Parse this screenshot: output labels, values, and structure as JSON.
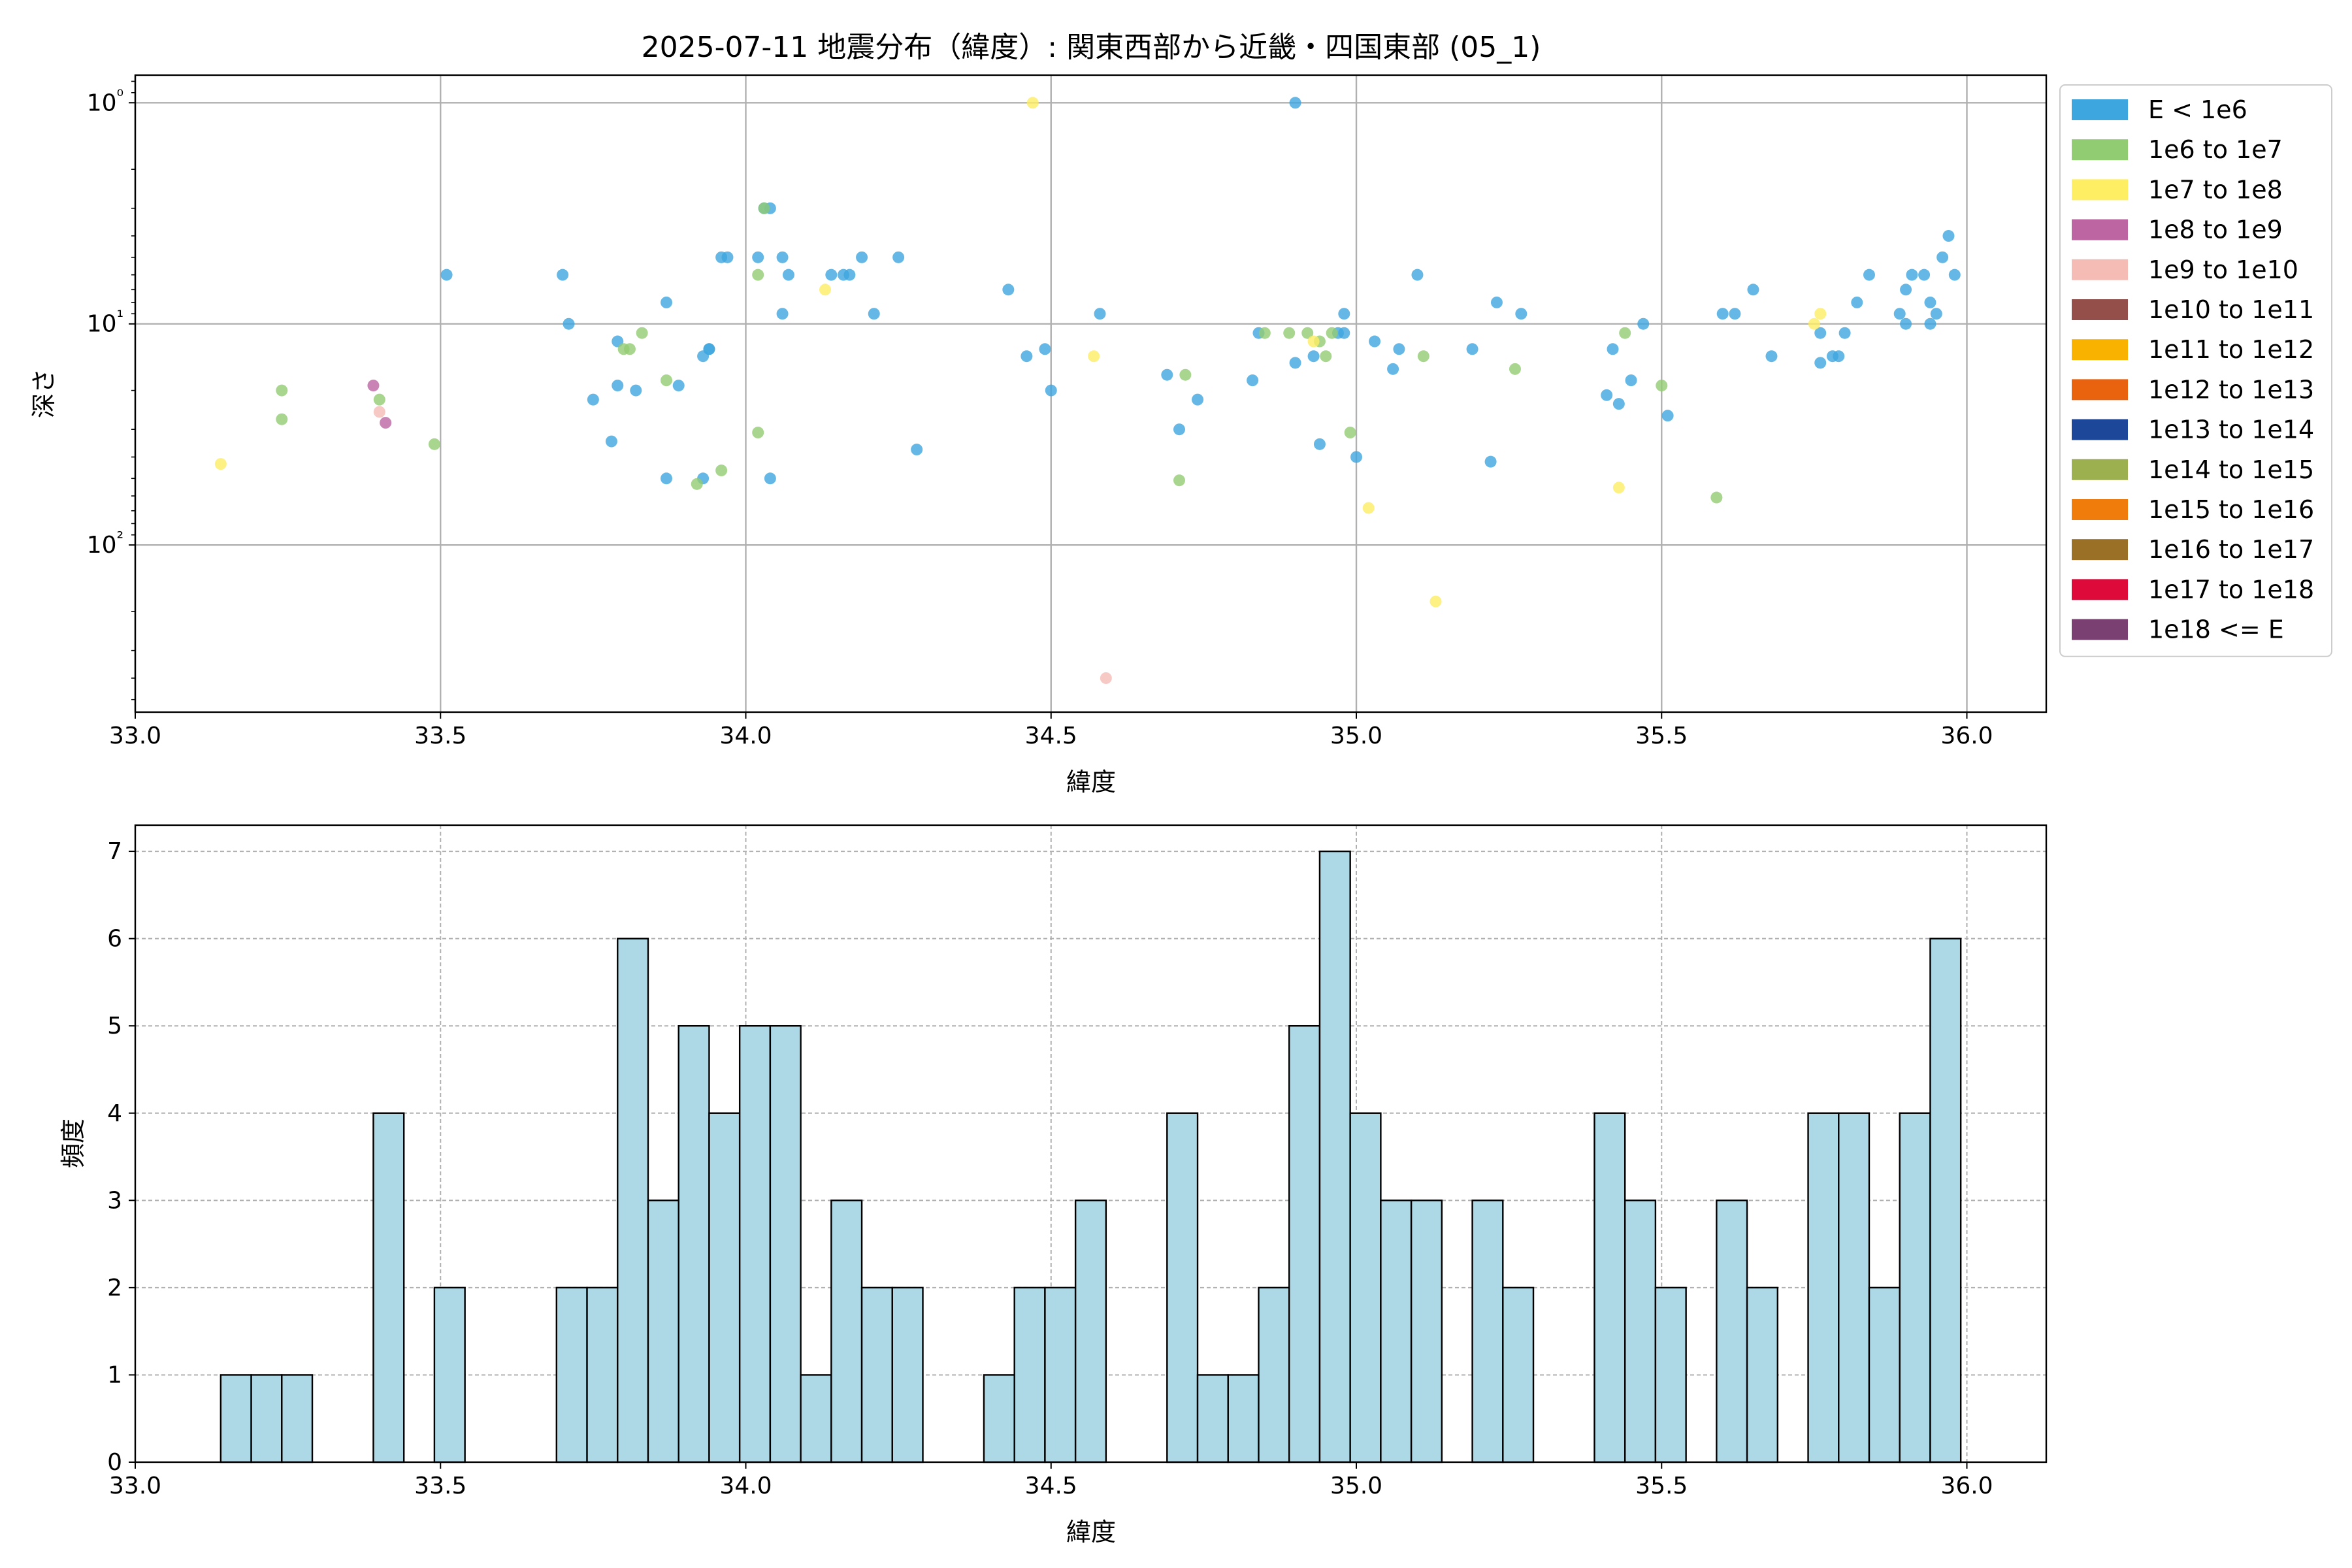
{
  "chart_data": [
    {
      "type": "scatter",
      "title": "2025-07-11 地震分布（緯度）: 関東西部から近畿・四国東部 (05_1)",
      "xlabel": "緯度",
      "ylabel": "深さ",
      "xlim": [
        33.0,
        36.13
      ],
      "yscale": "log",
      "yinverted": true,
      "ylim": [
        0.75,
        570
      ],
      "xticks": [
        33.0,
        33.5,
        34.0,
        34.5,
        35.0,
        35.5,
        36.0
      ],
      "xtick_labels": [
        "33.0",
        "33.5",
        "34.0",
        "34.5",
        "35.0",
        "35.5",
        "36.0"
      ],
      "yticks": [
        1,
        10,
        100
      ],
      "ytick_labels": [
        "10⁰",
        "10¹",
        "10²"
      ],
      "grid": true,
      "legend": {
        "position": "outside-right",
        "entries": [
          {
            "label": "E < 1e6",
            "color": "#3ea6de"
          },
          {
            "label": "1e6 to 1e7",
            "color": "#92cc72"
          },
          {
            "label": "1e7 to 1e8",
            "color": "#fdee64"
          },
          {
            "label": "1e8 to 1e9",
            "color": "#bd64a3"
          },
          {
            "label": "1e9 to 1e10",
            "color": "#f5bcb6"
          },
          {
            "label": "1e10 to 1e11",
            "color": "#944f4b"
          },
          {
            "label": "1e11 to 1e12",
            "color": "#f9b200"
          },
          {
            "label": "1e12 to 1e13",
            "color": "#e9620e"
          },
          {
            "label": "1e13 to 1e14",
            "color": "#1d4899"
          },
          {
            "label": "1e14 to 1e15",
            "color": "#9cb04f"
          },
          {
            "label": "1e15 to 1e16",
            "color": "#f07c0c"
          },
          {
            "label": "1e16 to 1e17",
            "color": "#997026"
          },
          {
            "label": "1e17 to 1e18",
            "color": "#dd0a3a"
          },
          {
            "label": "1e18 <= E",
            "color": "#7a4071"
          }
        ]
      },
      "series": [
        {
          "class": 0,
          "points": [
            [
              33.51,
              6
            ],
            [
              33.7,
              6
            ],
            [
              33.71,
              10
            ],
            [
              33.75,
              22
            ],
            [
              33.78,
              34
            ],
            [
              33.79,
              19
            ],
            [
              33.79,
              12
            ],
            [
              33.82,
              20
            ],
            [
              33.87,
              50
            ],
            [
              33.87,
              8
            ],
            [
              33.89,
              19
            ],
            [
              33.93,
              14
            ],
            [
              33.93,
              50
            ],
            [
              33.94,
              13
            ],
            [
              33.94,
              13
            ],
            [
              33.96,
              5
            ],
            [
              33.97,
              5
            ],
            [
              34.02,
              5
            ],
            [
              34.03,
              3
            ],
            [
              34.04,
              3
            ],
            [
              34.04,
              50
            ],
            [
              34.06,
              5
            ],
            [
              34.06,
              9
            ],
            [
              34.07,
              6
            ],
            [
              34.14,
              6
            ],
            [
              34.16,
              6
            ],
            [
              34.17,
              6
            ],
            [
              34.19,
              5
            ],
            [
              34.21,
              9
            ],
            [
              34.25,
              5
            ],
            [
              34.28,
              37
            ],
            [
              34.43,
              7
            ],
            [
              34.46,
              14
            ],
            [
              34.49,
              13
            ],
            [
              34.5,
              20
            ],
            [
              34.58,
              9
            ],
            [
              34.69,
              17
            ],
            [
              34.71,
              30
            ],
            [
              34.74,
              22
            ],
            [
              34.83,
              18
            ],
            [
              34.84,
              11
            ],
            [
              34.9,
              1
            ],
            [
              34.9,
              15
            ],
            [
              34.93,
              14
            ],
            [
              34.94,
              35
            ],
            [
              34.97,
              11
            ],
            [
              34.98,
              9
            ],
            [
              34.98,
              11
            ],
            [
              35.0,
              40
            ],
            [
              35.03,
              12
            ],
            [
              35.06,
              16
            ],
            [
              35.07,
              13
            ],
            [
              35.1,
              6
            ],
            [
              35.19,
              13
            ],
            [
              35.22,
              42
            ],
            [
              35.23,
              8
            ],
            [
              35.27,
              9
            ],
            [
              35.41,
              21
            ],
            [
              35.42,
              13
            ],
            [
              35.43,
              23
            ],
            [
              35.45,
              18
            ],
            [
              35.47,
              10
            ],
            [
              35.51,
              26
            ],
            [
              35.6,
              9
            ],
            [
              35.62,
              9
            ],
            [
              35.65,
              7
            ],
            [
              35.68,
              14
            ],
            [
              35.76,
              15
            ],
            [
              35.76,
              11
            ],
            [
              35.78,
              14
            ],
            [
              35.79,
              14
            ],
            [
              35.8,
              11
            ],
            [
              35.82,
              8
            ],
            [
              35.84,
              6
            ],
            [
              35.89,
              9
            ],
            [
              35.9,
              7
            ],
            [
              35.9,
              10
            ],
            [
              35.91,
              6
            ],
            [
              35.93,
              6
            ],
            [
              35.94,
              8
            ],
            [
              35.94,
              10
            ],
            [
              35.95,
              9
            ],
            [
              35.96,
              5
            ],
            [
              35.97,
              4
            ],
            [
              35.98,
              6
            ]
          ]
        },
        {
          "class": 1,
          "points": [
            [
              33.24,
              20
            ],
            [
              33.24,
              27
            ],
            [
              33.4,
              22
            ],
            [
              33.49,
              35
            ],
            [
              33.8,
              13
            ],
            [
              33.81,
              13
            ],
            [
              33.83,
              11
            ],
            [
              33.87,
              18
            ],
            [
              33.92,
              53
            ],
            [
              33.96,
              46
            ],
            [
              34.02,
              6
            ],
            [
              34.02,
              31
            ],
            [
              34.03,
              3
            ],
            [
              34.71,
              51
            ],
            [
              34.72,
              17
            ],
            [
              34.85,
              11
            ],
            [
              34.89,
              11
            ],
            [
              34.92,
              11
            ],
            [
              34.94,
              12
            ],
            [
              34.95,
              14
            ],
            [
              34.96,
              11
            ],
            [
              34.99,
              31
            ],
            [
              35.11,
              14
            ],
            [
              35.26,
              16
            ],
            [
              35.44,
              11
            ],
            [
              35.5,
              19
            ],
            [
              35.59,
              61
            ]
          ]
        },
        {
          "class": 2,
          "points": [
            [
              33.14,
              43
            ],
            [
              34.13,
              7
            ],
            [
              34.47,
              1
            ],
            [
              34.57,
              14
            ],
            [
              34.93,
              12
            ],
            [
              35.02,
              68
            ],
            [
              35.13,
              180
            ],
            [
              35.43,
              55
            ],
            [
              35.75,
              10
            ],
            [
              35.76,
              9
            ]
          ]
        },
        {
          "class": 3,
          "points": [
            [
              33.39,
              19
            ],
            [
              33.41,
              28
            ]
          ]
        },
        {
          "class": 4,
          "points": [
            [
              33.4,
              25
            ],
            [
              34.59,
              400
            ]
          ]
        }
      ]
    },
    {
      "type": "bar",
      "xlabel": "緯度",
      "ylabel": "頻度",
      "xlim": [
        33.0,
        36.13
      ],
      "ylim": [
        0,
        7.3
      ],
      "xticks": [
        33.0,
        33.5,
        34.0,
        34.5,
        35.0,
        35.5,
        36.0
      ],
      "xtick_labels": [
        "33.0",
        "33.5",
        "34.0",
        "34.5",
        "35.0",
        "35.5",
        "36.0"
      ],
      "yticks": [
        0,
        1,
        2,
        3,
        4,
        5,
        6,
        7
      ],
      "ytick_labels": [
        "0",
        "1",
        "2",
        "3",
        "4",
        "5",
        "6",
        "7"
      ],
      "grid": true,
      "bar_color": "#add8e6",
      "bin_start": 33.14,
      "bin_width": 0.05,
      "counts": [
        1,
        1,
        1,
        0,
        0,
        4,
        0,
        2,
        0,
        0,
        0,
        2,
        2,
        6,
        3,
        5,
        4,
        5,
        5,
        1,
        3,
        2,
        2,
        0,
        0,
        1,
        2,
        2,
        3,
        0,
        0,
        4,
        1,
        1,
        2,
        5,
        7,
        4,
        3,
        3,
        0,
        3,
        2,
        0,
        0,
        4,
        3,
        2,
        0,
        3,
        2,
        0,
        4,
        4,
        2,
        4,
        6
      ]
    }
  ]
}
